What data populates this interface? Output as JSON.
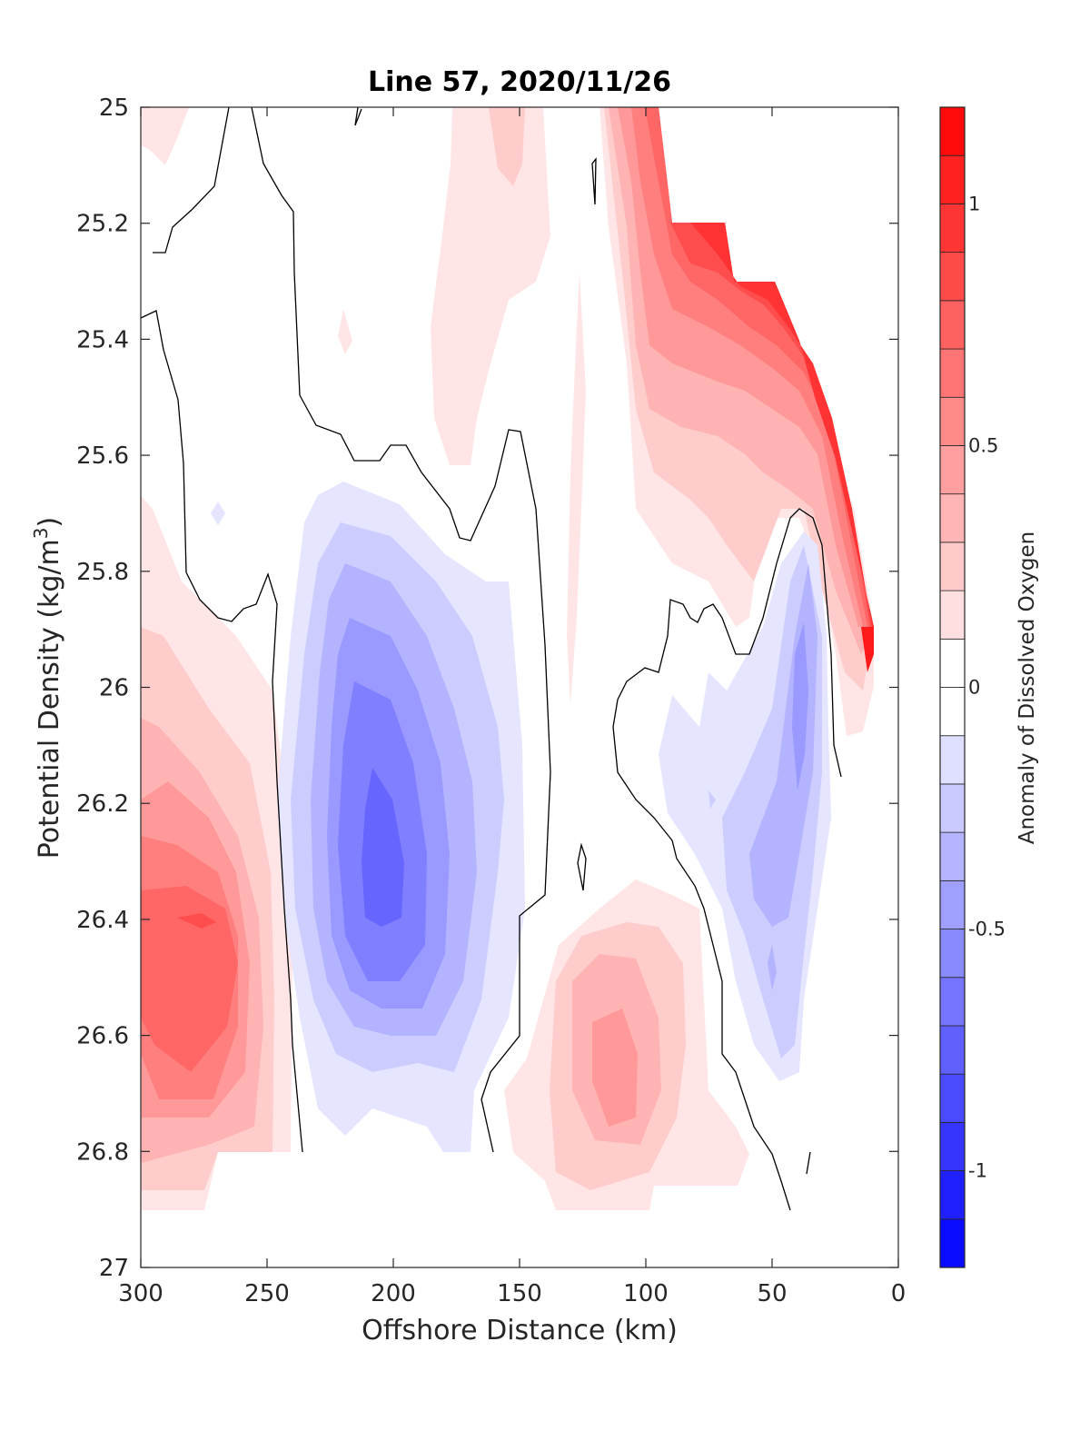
{
  "chart_data": {
    "type": "heatmap",
    "subtype": "filled-contour",
    "title": "Line 57, 2020/11/26",
    "xlabel": "Offshore Distance (km)",
    "ylabel_prefix": "Potential Density (kg/m",
    "ylabel_sup": "3",
    "ylabel_suffix": ")",
    "colorbar_label": "Anomaly of Dissolved Oxygen",
    "xlim": [
      300,
      0
    ],
    "x_reversed": true,
    "ylim": [
      25,
      27
    ],
    "y_reversed": true,
    "xticks": [
      "300",
      "250",
      "200",
      "150",
      "100",
      "50",
      "0"
    ],
    "xtick_values": [
      300,
      250,
      200,
      150,
      100,
      50,
      0
    ],
    "yticks": [
      "25",
      "25.2",
      "25.4",
      "25.6",
      "25.8",
      "26",
      "26.2",
      "26.4",
      "26.6",
      "26.8",
      "27"
    ],
    "ytick_values": [
      25,
      25.2,
      25.4,
      25.6,
      25.8,
      26,
      26.2,
      26.4,
      26.6,
      26.8,
      27
    ],
    "colorbar_range": [
      -1.2,
      1.2
    ],
    "colorbar_ticks": [
      "1",
      "0.5",
      "0",
      "-0.5",
      "-1"
    ],
    "colorbar_tick_values": [
      1,
      0.5,
      0,
      -0.5,
      -1
    ],
    "colorbar_step": 0.1,
    "colormap": {
      "negative": "#0000ff",
      "zero": "#ffffff",
      "positive": "#ff0000"
    },
    "zero_contour_color": "#000000",
    "features": [
      {
        "x": 285,
        "y": 26.42,
        "value": 0.8
      },
      {
        "x": 205,
        "y": 26.25,
        "value": -0.6
      },
      {
        "x": 110,
        "y": 26.65,
        "value": 0.45
      },
      {
        "x": 75,
        "y": 25.25,
        "value": 0.9
      },
      {
        "x": 40,
        "y": 26.1,
        "value": -0.35
      },
      {
        "x": 160,
        "y": 25.1,
        "value": 0.15
      },
      {
        "x": 20,
        "y": 25.9,
        "value": 1.0
      }
    ]
  }
}
